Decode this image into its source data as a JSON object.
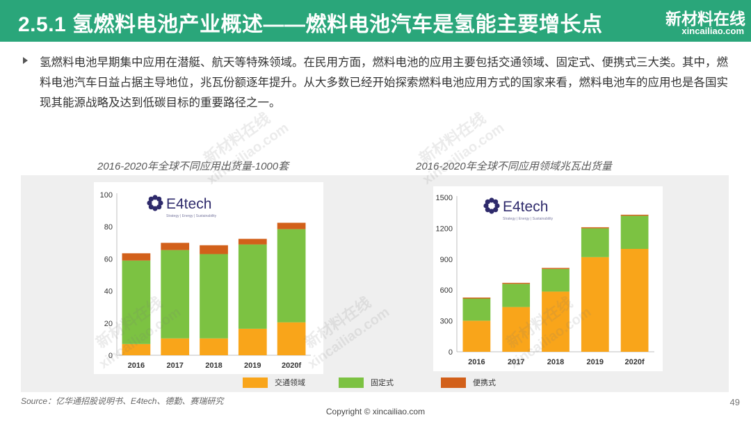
{
  "header": {
    "title": "2.5.1 氢燃料电池产业概述——燃料电池汽车是氢能主要增长点",
    "logo_text": "新材料在线",
    "logo_subtext": "xincailiao.com"
  },
  "bullet": {
    "text": "氢燃料电池早期集中应用在潜艇、航天等特殊领域。在民用方面，燃料电池的应用主要包括交通领域、固定式、便携式三大类。其中，燃料电池汽车日益占据主导地位，兆瓦份额逐年提升。从大多数已经开始探索燃料电池应用方式的国家来看，燃料电池车的应用也是各国实现其能源战略及达到低碳目标的重要路径之一。"
  },
  "colors": {
    "header_green": "#2aa67a",
    "transport": "#f9a51a",
    "stationary": "#7cc242",
    "portable": "#d2601a"
  },
  "charts_meta": {
    "brand_name": "E4tech",
    "brand_tagline": "Strategy | Energy | Sustainability"
  },
  "chart_data": [
    {
      "type": "bar",
      "stacked": true,
      "title": "2016-2020年全球不同应用出货量-1000套",
      "categories": [
        "2016",
        "2017",
        "2018",
        "2019",
        "2020f"
      ],
      "series": [
        {
          "name": "交通领域",
          "color": "#f9a51a",
          "values": [
            7,
            10.5,
            10.5,
            16.5,
            20.5
          ]
        },
        {
          "name": "固定式",
          "color": "#7cc242",
          "values": [
            52,
            55,
            52.5,
            52.5,
            58
          ]
        },
        {
          "name": "便携式",
          "color": "#d2601a",
          "values": [
            4.5,
            4.5,
            5.5,
            3.5,
            4
          ]
        }
      ],
      "yticks": [
        "0",
        "20",
        "40",
        "60",
        "80",
        "100"
      ],
      "ylim": [
        0,
        100
      ],
      "grid": false
    },
    {
      "type": "bar",
      "stacked": true,
      "title": "2016-2020年全球不同应用领域兆瓦出货量",
      "categories": [
        "2016",
        "2017",
        "2018",
        "2019",
        "2020f"
      ],
      "series": [
        {
          "name": "交通领域",
          "color": "#f9a51a",
          "values": [
            302,
            435,
            585,
            920,
            1000
          ]
        },
        {
          "name": "固定式",
          "color": "#7cc242",
          "values": [
            215,
            225,
            220,
            280,
            322
          ]
        },
        {
          "name": "便携式",
          "color": "#d2601a",
          "values": [
            10,
            10,
            10,
            10,
            10
          ]
        }
      ],
      "yticks": [
        "0",
        "300",
        "600",
        "900",
        "1200",
        "1500"
      ],
      "ylim": [
        0,
        1500
      ],
      "grid": false
    }
  ],
  "legend": [
    "交通领域",
    "固定式",
    "便携式"
  ],
  "watermark": {
    "text_cn": "新材料在线",
    "text_en": "xincailiao.com"
  },
  "footer": {
    "source": "Source：亿华通招股说明书、E4tech、德勤、赛瑞研究",
    "copyright": "Copyright © xincailiao.com",
    "page_number": "49"
  }
}
